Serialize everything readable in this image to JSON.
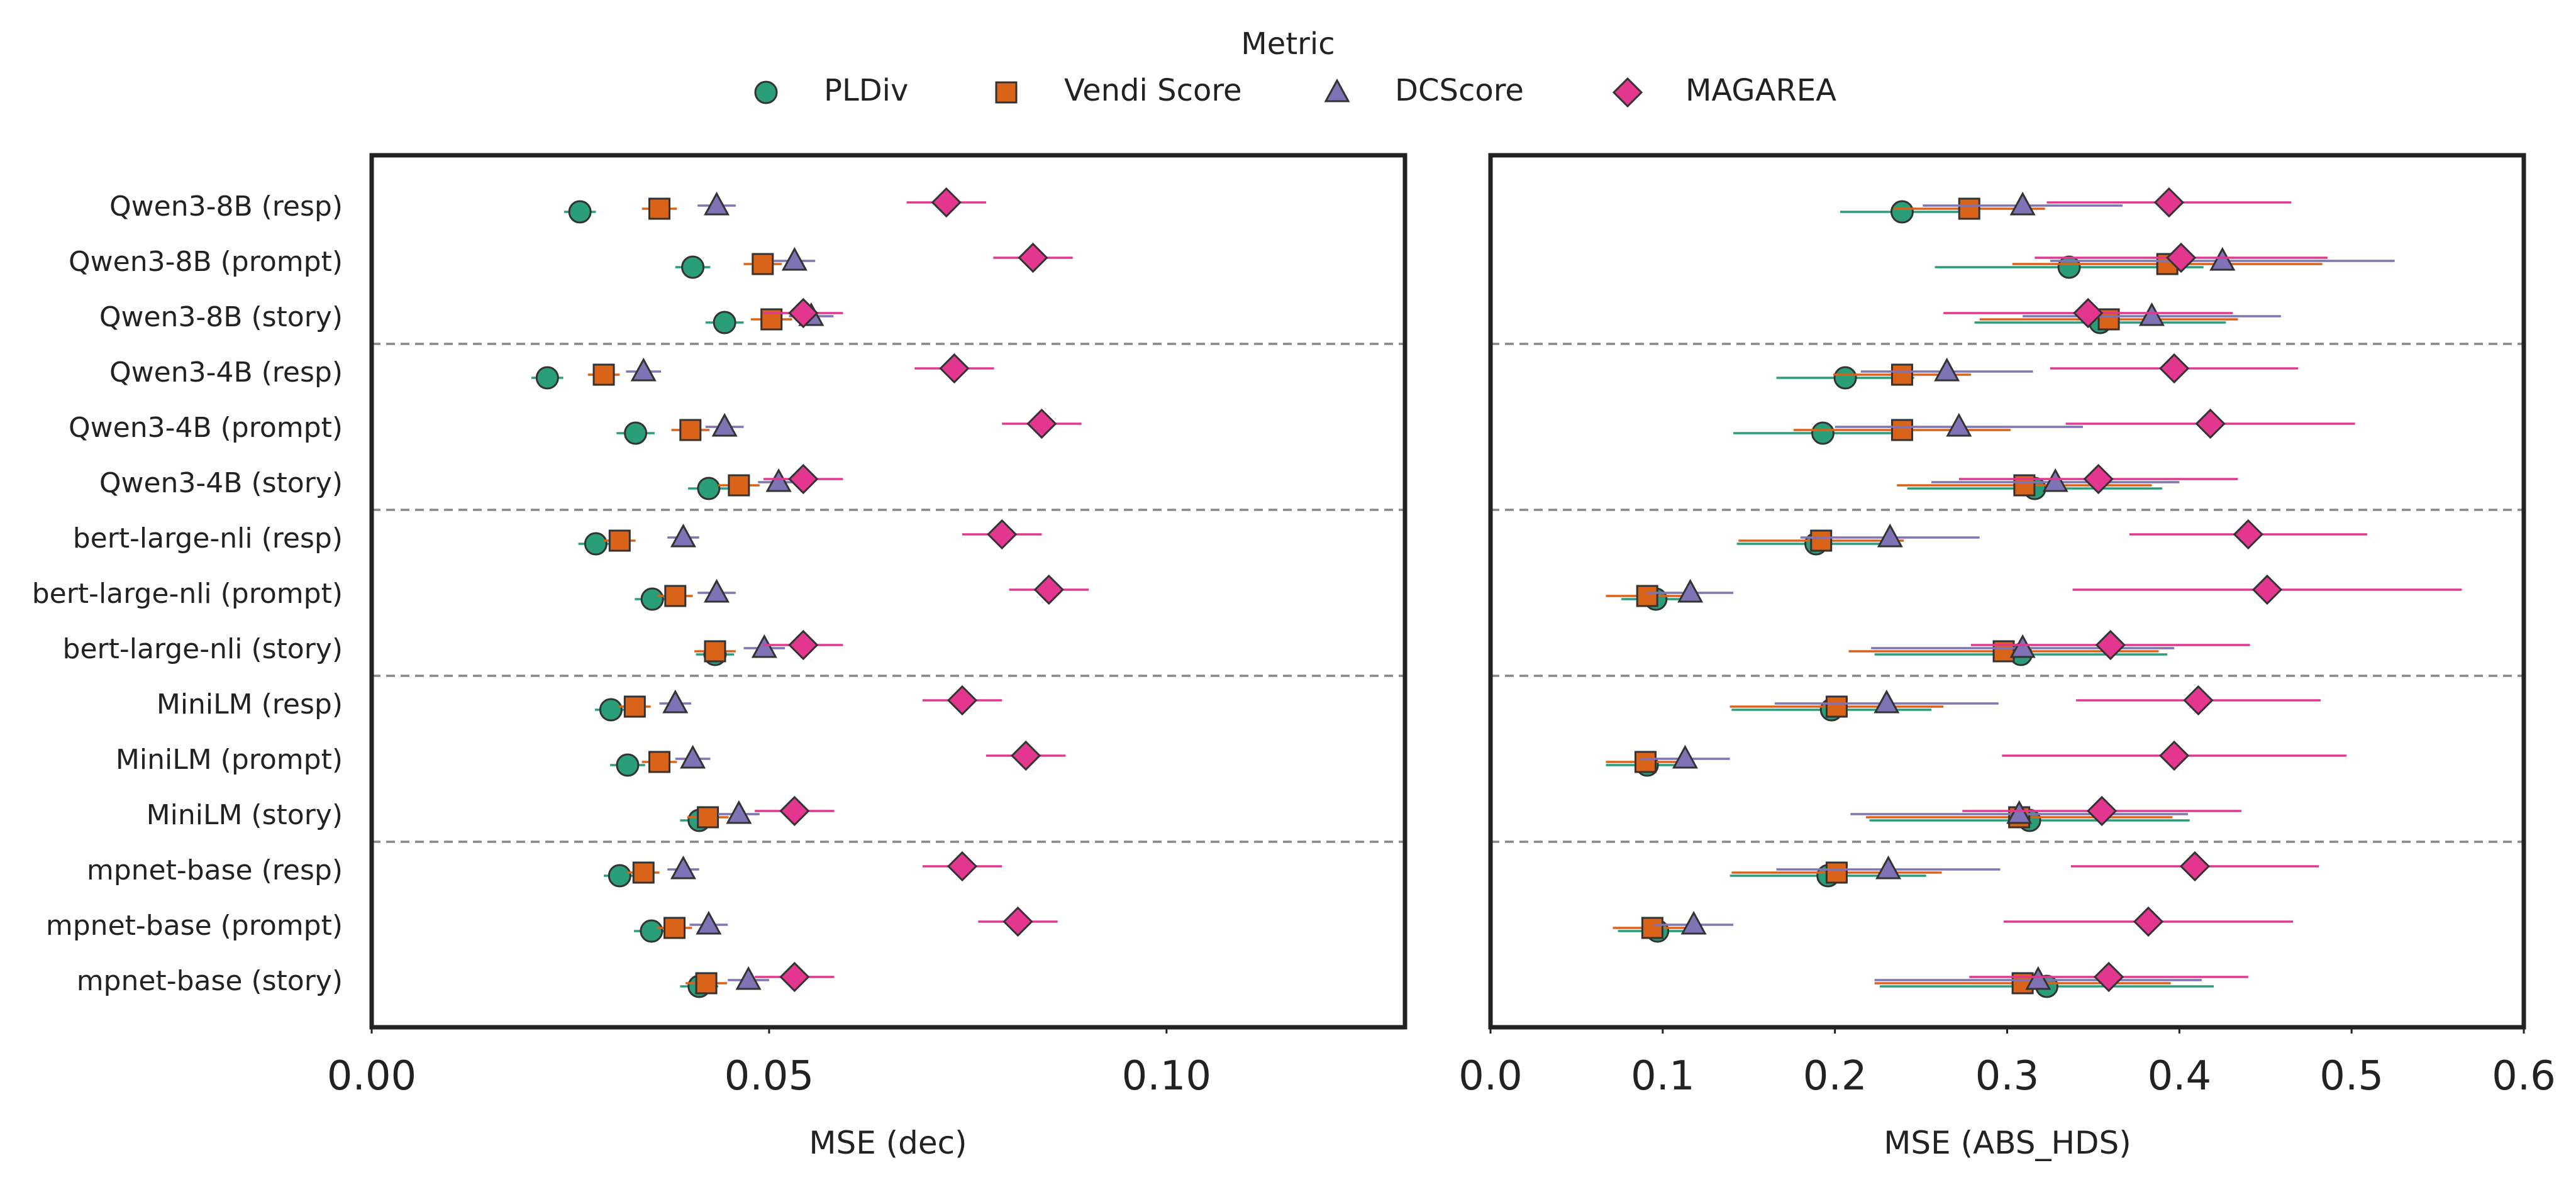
{
  "chart_data": [
    {
      "type": "scatter",
      "subtype": "dot-plot-with-error-bars",
      "xlabel": "MSE (dec)",
      "xlim": [
        0.0,
        0.13
      ],
      "xticks": [
        "0.00",
        "0.05",
        "0.10"
      ],
      "xtick_values": [
        0.0,
        0.05,
        0.1
      ],
      "categories": [
        "Qwen3-8B (resp)",
        "Qwen3-8B (prompt)",
        "Qwen3-8B (story)",
        "Qwen3-4B (resp)",
        "Qwen3-4B (prompt)",
        "Qwen3-4B (story)",
        "bert-large-nli (resp)",
        "bert-large-nli (prompt)",
        "bert-large-nli (story)",
        "MiniLM (resp)",
        "MiniLM (prompt)",
        "MiniLM (story)",
        "mpnet-base (resp)",
        "mpnet-base (prompt)",
        "mpnet-base (story)"
      ],
      "group_separators_after": [
        3,
        6,
        9,
        12
      ],
      "series": [
        {
          "name": "PLDiv",
          "color": "#2a9e78",
          "marker": "circle",
          "values": [
            0.0262,
            0.0404,
            0.0444,
            0.0221,
            0.0332,
            0.0424,
            0.0282,
            0.0353,
            0.0432,
            0.0301,
            0.0322,
            0.0412,
            0.0312,
            0.0352,
            0.0412
          ],
          "err": [
            0.002,
            0.0022,
            0.0024,
            0.002,
            0.0024,
            0.0026,
            0.0022,
            0.0022,
            0.0024,
            0.002,
            0.0022,
            0.0024,
            0.002,
            0.0022,
            0.0024
          ]
        },
        {
          "name": "Vendi Score",
          "color": "#d96319",
          "marker": "square",
          "values": [
            0.0362,
            0.0492,
            0.0503,
            0.0292,
            0.0401,
            0.0462,
            0.0312,
            0.0382,
            0.0432,
            0.0331,
            0.0362,
            0.0423,
            0.0342,
            0.0381,
            0.0421
          ],
          "err": [
            0.0022,
            0.0024,
            0.0026,
            0.002,
            0.0024,
            0.0026,
            0.002,
            0.0022,
            0.0026,
            0.002,
            0.0022,
            0.0026,
            0.002,
            0.0022,
            0.0026
          ]
        },
        {
          "name": "DCScore",
          "color": "#7f72b5",
          "marker": "triangle",
          "values": [
            0.0434,
            0.0532,
            0.0553,
            0.0342,
            0.0444,
            0.0512,
            0.0392,
            0.0434,
            0.0494,
            0.0382,
            0.0404,
            0.0462,
            0.0392,
            0.0424,
            0.0474
          ],
          "err": [
            0.0024,
            0.0026,
            0.0028,
            0.0022,
            0.0024,
            0.0026,
            0.002,
            0.0024,
            0.0026,
            0.002,
            0.0022,
            0.0026,
            0.002,
            0.0024,
            0.0026
          ]
        },
        {
          "name": "MAGAREA",
          "color": "#e3378f",
          "marker": "diamond",
          "values": [
            0.0723,
            0.0832,
            0.0543,
            0.0733,
            0.0843,
            0.0543,
            0.0793,
            0.0852,
            0.0543,
            0.0743,
            0.0823,
            0.0532,
            0.0743,
            0.0813,
            0.0532
          ],
          "err": [
            0.005,
            0.005,
            0.005,
            0.005,
            0.005,
            0.005,
            0.005,
            0.005,
            0.005,
            0.005,
            0.005,
            0.005,
            0.005,
            0.005,
            0.005
          ]
        }
      ]
    },
    {
      "type": "scatter",
      "subtype": "dot-plot-with-error-bars",
      "xlabel": "MSE (ABS_HDS)",
      "xlim": [
        0.0,
        0.6
      ],
      "xticks": [
        "0.0",
        "0.1",
        "0.2",
        "0.3",
        "0.4",
        "0.5",
        "0.6"
      ],
      "xtick_values": [
        0.0,
        0.1,
        0.2,
        0.3,
        0.4,
        0.5,
        0.6
      ],
      "shares_y_with_previous": true,
      "series": [
        {
          "name": "PLDiv",
          "color": "#2a9e78",
          "marker": "circle",
          "values": [
            0.239,
            0.336,
            0.354,
            0.206,
            0.193,
            0.316,
            0.189,
            0.096,
            0.308,
            0.198,
            0.091,
            0.313,
            0.196,
            0.097,
            0.323
          ],
          "err": [
            0.036,
            0.078,
            0.073,
            0.04,
            0.052,
            0.074,
            0.046,
            0.02,
            0.085,
            0.058,
            0.024,
            0.093,
            0.057,
            0.023,
            0.097
          ]
        },
        {
          "name": "Vendi Score",
          "color": "#d96319",
          "marker": "square",
          "values": [
            0.278,
            0.393,
            0.359,
            0.239,
            0.239,
            0.31,
            0.192,
            0.091,
            0.298,
            0.201,
            0.09,
            0.307,
            0.201,
            0.094,
            0.309
          ],
          "err": [
            0.044,
            0.09,
            0.075,
            0.04,
            0.063,
            0.074,
            0.048,
            0.024,
            0.09,
            0.062,
            0.023,
            0.089,
            0.061,
            0.023,
            0.086
          ]
        },
        {
          "name": "DCScore",
          "color": "#7f72b5",
          "marker": "triangle",
          "values": [
            0.309,
            0.425,
            0.384,
            0.265,
            0.272,
            0.328,
            0.232,
            0.116,
            0.309,
            0.23,
            0.113,
            0.307,
            0.231,
            0.118,
            0.318
          ],
          "err": [
            0.058,
            0.1,
            0.075,
            0.05,
            0.072,
            0.072,
            0.052,
            0.025,
            0.088,
            0.065,
            0.026,
            0.098,
            0.065,
            0.023,
            0.095
          ]
        },
        {
          "name": "MAGAREA",
          "color": "#e3378f",
          "marker": "diamond",
          "values": [
            0.394,
            0.401,
            0.347,
            0.397,
            0.418,
            0.353,
            0.44,
            0.451,
            0.36,
            0.411,
            0.397,
            0.355,
            0.409,
            0.382,
            0.359
          ],
          "err": [
            0.071,
            0.085,
            0.084,
            0.072,
            0.084,
            0.081,
            0.069,
            0.113,
            0.081,
            0.071,
            0.1,
            0.081,
            0.072,
            0.084,
            0.081
          ]
        }
      ]
    }
  ],
  "legend": {
    "title": "Metric",
    "position": "top-center",
    "items": [
      {
        "label": "PLDiv",
        "marker": "circle",
        "color": "#2a9e78"
      },
      {
        "label": "Vendi Score",
        "marker": "square",
        "color": "#d96319"
      },
      {
        "label": "DCScore",
        "marker": "triangle",
        "color": "#7f72b5"
      },
      {
        "label": "MAGAREA",
        "marker": "diamond",
        "color": "#e3378f"
      }
    ]
  }
}
